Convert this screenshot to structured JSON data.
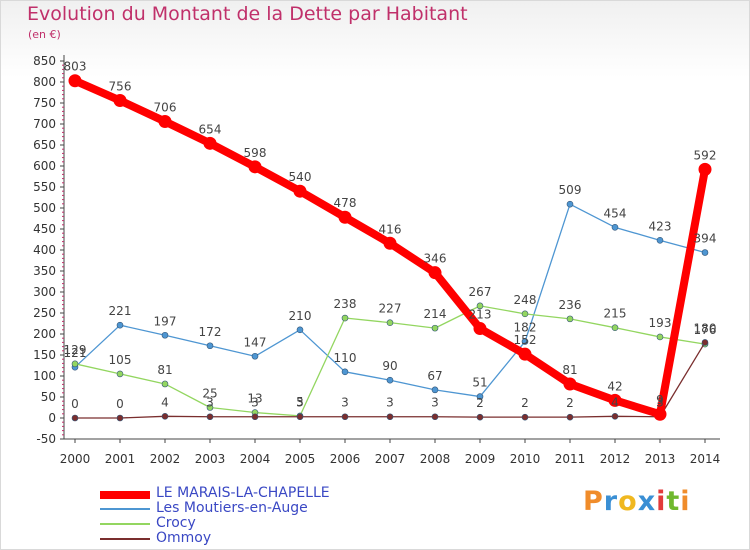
{
  "title": "Evolution du Montant de la Dette par Habitant",
  "subtitle": "(en €)",
  "logo": {
    "text": "Proxiti",
    "colors": [
      "#f08c2a",
      "#3a8fd4",
      "#f0b820",
      "#3a8fd4",
      "#e23b3b",
      "#6fb82e",
      "#f08c2a"
    ]
  },
  "chart_data": {
    "type": "line",
    "x": [
      "2000",
      "2001",
      "2002",
      "2003",
      "2004",
      "2005",
      "2006",
      "2007",
      "2008",
      "2009",
      "2010",
      "2011",
      "2012",
      "2013",
      "2014"
    ],
    "yticks": [
      "-50",
      "0",
      "50",
      "100",
      "150",
      "200",
      "250",
      "300",
      "350",
      "400",
      "450",
      "500",
      "550",
      "600",
      "650",
      "700",
      "750",
      "800",
      "850"
    ],
    "ylim": [
      -50,
      850
    ],
    "grid": false,
    "legend_position": "bottom-left",
    "series": [
      {
        "name": "LE MARAIS-LA-CHAPELLE",
        "color": "#ff0000",
        "values": [
          803,
          756,
          706,
          654,
          598,
          540,
          478,
          416,
          346,
          213,
          152,
          81,
          42,
          9,
          592
        ],
        "labels": [
          "803",
          "756",
          "706",
          "654",
          "598",
          "540",
          "478",
          "416",
          "346",
          "213",
          "152",
          "81",
          "42",
          "9",
          "592"
        ]
      },
      {
        "name": "Les Moutiers-en-Auge",
        "color": "#4e96d2",
        "values": [
          121,
          221,
          197,
          172,
          147,
          210,
          110,
          90,
          67,
          51,
          182,
          509,
          454,
          423,
          394
        ],
        "labels": [
          "121",
          "221",
          "197",
          "172",
          "147",
          "210",
          "110",
          "90",
          "67",
          "51",
          "182",
          "509",
          "454",
          "423",
          "394"
        ]
      },
      {
        "name": "Crocy",
        "color": "#93d660",
        "values": [
          129,
          105,
          81,
          25,
          13,
          5,
          238,
          227,
          214,
          267,
          248,
          236,
          215,
          193,
          176
        ],
        "labels": [
          "129",
          "105",
          "81",
          "25",
          "13",
          "5",
          "238",
          "227",
          "214",
          "267",
          "248",
          "236",
          "215",
          "193",
          "176"
        ]
      },
      {
        "name": "Ommoy",
        "color": "#7a2e2e",
        "values": [
          0,
          0,
          4,
          3,
          3,
          3,
          3,
          3,
          3,
          2,
          2,
          2,
          4,
          3,
          180
        ],
        "labels": [
          "0",
          "0",
          "4",
          "3",
          "3",
          "3",
          "3",
          "3",
          "3",
          "2",
          "2",
          "2",
          "4",
          "3",
          "180"
        ]
      }
    ]
  }
}
